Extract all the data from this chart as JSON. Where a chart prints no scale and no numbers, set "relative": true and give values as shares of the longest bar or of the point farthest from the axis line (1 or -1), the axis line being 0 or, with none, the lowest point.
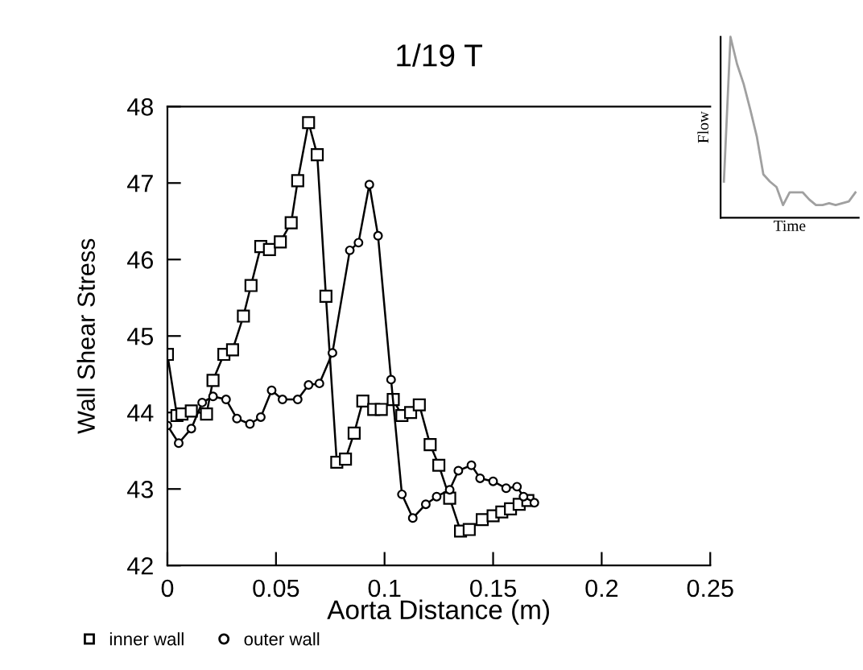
{
  "chart_data": [
    {
      "type": "line",
      "title": "1/19 T",
      "xlabel": "Aorta Distance (m)",
      "ylabel": "Wall Shear Stress",
      "xlim": [
        0,
        0.25
      ],
      "ylim": [
        42,
        48
      ],
      "xticks": [
        {
          "value": 0,
          "label": "0"
        },
        0.05,
        0.1,
        0.15,
        0.2,
        0.25
      ],
      "yticks": [
        42,
        43,
        44,
        45,
        46,
        47,
        48
      ],
      "grid": false,
      "legend": "bottom left",
      "line_style": "solid",
      "series": [
        {
          "name": "inner wall",
          "color": "#000000",
          "marker": "square",
          "x": [
            0,
            0.0044,
            0.0067,
            0.011,
            0.018,
            0.021,
            0.026,
            0.03,
            0.035,
            0.0385,
            0.043,
            0.047,
            0.052,
            0.057,
            0.06,
            0.065,
            0.069,
            0.073,
            0.078,
            0.082,
            0.086,
            0.09,
            0.095,
            0.0985,
            0.104,
            0.108,
            0.112,
            0.116,
            0.121,
            0.125,
            0.13,
            0.135,
            0.139,
            0.145,
            0.15,
            0.154,
            0.158,
            0.162,
            0.166
          ],
          "values": [
            44.76,
            43.96,
            43.98,
            44.02,
            43.98,
            44.42,
            44.76,
            44.82,
            45.26,
            45.66,
            46.17,
            46.13,
            46.23,
            46.48,
            47.03,
            47.79,
            47.37,
            45.52,
            43.35,
            43.39,
            43.73,
            44.15,
            44.04,
            44.04,
            44.17,
            43.96,
            44.0,
            44.1,
            43.58,
            43.31,
            42.88,
            42.45,
            42.47,
            42.6,
            42.65,
            42.7,
            42.74,
            42.8,
            42.85
          ]
        },
        {
          "name": "outer wall",
          "color": "#000000",
          "marker": "circle",
          "x": [
            0,
            0.0052,
            0.011,
            0.016,
            0.021,
            0.027,
            0.032,
            0.038,
            0.043,
            0.048,
            0.053,
            0.06,
            0.065,
            0.07,
            0.076,
            0.084,
            0.088,
            0.093,
            0.097,
            0.103,
            0.108,
            0.113,
            0.119,
            0.124,
            0.13,
            0.134,
            0.14,
            0.144,
            0.15,
            0.156,
            0.161,
            0.164,
            0.169
          ],
          "values": [
            43.83,
            43.6,
            43.79,
            44.13,
            44.21,
            44.17,
            43.92,
            43.85,
            43.94,
            44.29,
            44.17,
            44.17,
            44.36,
            44.38,
            44.78,
            46.12,
            46.22,
            46.98,
            46.31,
            44.43,
            42.93,
            42.62,
            42.8,
            42.9,
            42.99,
            43.24,
            43.31,
            43.14,
            43.1,
            43.01,
            43.03,
            42.9,
            42.82
          ]
        }
      ]
    },
    {
      "type": "line",
      "relative": true,
      "xlabel": "Time",
      "ylabel": "Flow",
      "categories": [
        null,
        null,
        null,
        null,
        null,
        null,
        null,
        null,
        null,
        null,
        null,
        null,
        null,
        null,
        null,
        null,
        null,
        null,
        null,
        null,
        null
      ],
      "series": [
        {
          "color": "#a0a0a0",
          "values": [
            0.2,
            1,
            0.85,
            0.74,
            0.6,
            0.45,
            0.24,
            0.2,
            0.17,
            0.07,
            0.14,
            0.14,
            0.14,
            0.1,
            0.07,
            0.07,
            0.08,
            0.07,
            0.08,
            0.09,
            0.14
          ]
        }
      ]
    }
  ]
}
